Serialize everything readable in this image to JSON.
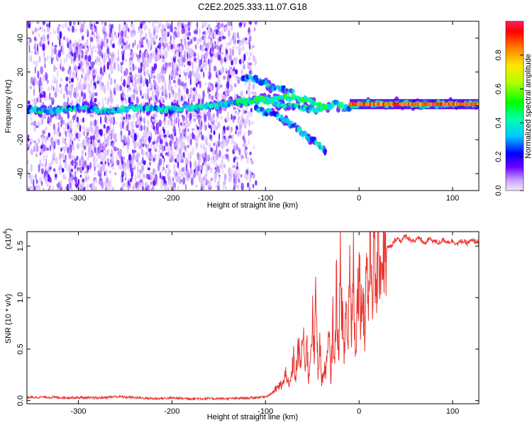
{
  "figure_title": "C2E2.2025.333.11.07.G18",
  "chart_data": [
    {
      "type": "heatmap",
      "title": "C2E2.2025.333.11.07.G18",
      "xlabel": "Height of straight line (km)",
      "ylabel": "Frequency (Hz)",
      "xlim": [
        -355,
        128
      ],
      "ylim": [
        -50,
        50
      ],
      "x_ticks": [
        -300,
        -200,
        -100,
        0,
        100
      ],
      "y_ticks": [
        -40,
        -20,
        0,
        20,
        40
      ],
      "x_tick_labels": [
        "-300",
        "-200",
        "-100",
        "0",
        "100"
      ],
      "y_tick_labels": [
        "-40",
        "-20",
        "0",
        "20",
        "40"
      ],
      "noise_regions": [
        {
          "x_from": -355,
          "x_to": -310,
          "density": 0.55
        },
        {
          "x_from": -310,
          "x_to": -262,
          "density": 0.9
        },
        {
          "x_from": -262,
          "x_to": -255,
          "density": 0.3
        },
        {
          "x_from": -255,
          "x_to": -150,
          "density": 0.9
        },
        {
          "x_from": -150,
          "x_to": -115,
          "density": 0.65
        },
        {
          "x_from": -115,
          "x_to": -110,
          "density": 0.25
        }
      ],
      "signal_tracks": [
        {
          "name": "main-tone",
          "points": [
            [
              -355,
              -2
            ],
            [
              -330,
              -3
            ],
            [
              -300,
              -1
            ],
            [
              -270,
              -3
            ],
            [
              -240,
              -1
            ],
            [
              -200,
              -2
            ],
            [
              -160,
              0
            ],
            [
              -130,
              2
            ],
            [
              -100,
              3
            ],
            [
              -80,
              0
            ],
            [
              -60,
              -1
            ],
            [
              -40,
              -2
            ],
            [
              -25,
              2
            ],
            [
              -15,
              -2
            ],
            [
              0,
              1
            ],
            [
              40,
              1
            ],
            [
              80,
              1
            ],
            [
              128,
              1
            ]
          ],
          "amplitude": 0.35
        },
        {
          "name": "upper-branch",
          "points": [
            [
              -130,
              2
            ],
            [
              -100,
              4
            ],
            [
              -80,
              5
            ],
            [
              -60,
              4
            ],
            [
              -40,
              0
            ],
            [
              -30,
              -1
            ]
          ],
          "amplitude": 0.45
        },
        {
          "name": "lower-branch",
          "points": [
            [
              -110,
              -2
            ],
            [
              -90,
              -5
            ],
            [
              -75,
              -10
            ],
            [
              -60,
              -16
            ],
            [
              -45,
              -22
            ],
            [
              -35,
              -28
            ]
          ],
          "amplitude": 0.3
        },
        {
          "name": "split-high",
          "points": [
            [
              -125,
              17
            ],
            [
              -110,
              16
            ],
            [
              -95,
              12
            ],
            [
              -85,
              10
            ],
            [
              -70,
              8
            ]
          ],
          "amplitude": 0.3
        },
        {
          "name": "converged-strong",
          "points": [
            [
              -10,
              1
            ],
            [
              20,
              1
            ],
            [
              60,
              1
            ],
            [
              90,
              1
            ],
            [
              128,
              1
            ]
          ],
          "amplitude": 0.9
        }
      ],
      "colorbar": {
        "label": "Normalized spectral amplitude",
        "range": [
          0.0,
          1.0
        ],
        "ticks": [
          0.0,
          0.2,
          0.4,
          0.6,
          0.8
        ],
        "tick_labels": [
          "0.0",
          "0.2",
          "0.4",
          "0.6",
          "0.8"
        ]
      }
    },
    {
      "type": "line",
      "xlabel": "Height of straight line (km)",
      "ylabel": "SNR (10 * v/v)",
      "y_scale_label": "(x10",
      "y_scale_exponent": "4",
      "xlim": [
        -355,
        128
      ],
      "ylim": [
        -0.03,
        1.64
      ],
      "x_ticks": [
        -300,
        -200,
        -100,
        0,
        100
      ],
      "y_ticks": [
        0.0,
        0.5,
        1.0,
        1.5
      ],
      "x_tick_labels": [
        "-300",
        "-200",
        "-100",
        "0",
        "100"
      ],
      "y_tick_labels": [
        "0.0",
        "0.5",
        "1.0",
        "1.5"
      ],
      "series": [
        {
          "name": "SNR",
          "color": "#e8342e",
          "x": [
            -355,
            -340,
            -320,
            -300,
            -280,
            -260,
            -240,
            -220,
            -200,
            -180,
            -160,
            -140,
            -120,
            -110,
            -100,
            -95,
            -90,
            -85,
            -80,
            -78,
            -75,
            -72,
            -70,
            -68,
            -65,
            -62,
            -60,
            -58,
            -56,
            -54,
            -52,
            -50,
            -48,
            -46,
            -44,
            -42,
            -40,
            -38,
            -36,
            -34,
            -32,
            -30,
            -28,
            -26,
            -24,
            -22,
            -20,
            -18,
            -16,
            -14,
            -12,
            -10,
            -8,
            -6,
            -4,
            -2,
            0,
            2,
            4,
            6,
            8,
            10,
            12,
            14,
            16,
            18,
            20,
            22,
            24,
            26,
            28,
            30,
            35,
            40,
            45,
            50,
            55,
            60,
            65,
            70,
            75,
            80,
            85,
            90,
            95,
            100,
            105,
            110,
            115,
            120,
            128
          ],
          "values": [
            0.03,
            0.035,
            0.03,
            0.03,
            0.025,
            0.04,
            0.03,
            0.02,
            0.025,
            0.02,
            0.02,
            0.02,
            0.025,
            0.03,
            0.04,
            0.06,
            0.1,
            0.14,
            0.18,
            0.3,
            0.12,
            0.25,
            0.42,
            0.2,
            0.5,
            0.35,
            0.68,
            0.3,
            0.62,
            0.2,
            0.45,
            0.85,
            0.4,
            1.05,
            0.3,
            0.55,
            0.2,
            0.25,
            0.3,
            0.4,
            0.6,
            0.2,
            0.8,
            0.3,
            1.2,
            0.4,
            1.25,
            0.9,
            0.35,
            1.0,
            0.5,
            1.3,
            0.7,
            1.35,
            0.5,
            0.9,
            1.35,
            0.8,
            1.2,
            0.6,
            1.45,
            0.9,
            1.62,
            1.1,
            1.45,
            1.05,
            1.3,
            1.45,
            1.3,
            1.52,
            1.4,
            1.48,
            1.5,
            1.58,
            1.55,
            1.6,
            1.56,
            1.55,
            1.58,
            1.52,
            1.57,
            1.55,
            1.53,
            1.56,
            1.54,
            1.55,
            1.52,
            1.55,
            1.53,
            1.55,
            1.54
          ]
        }
      ]
    }
  ]
}
